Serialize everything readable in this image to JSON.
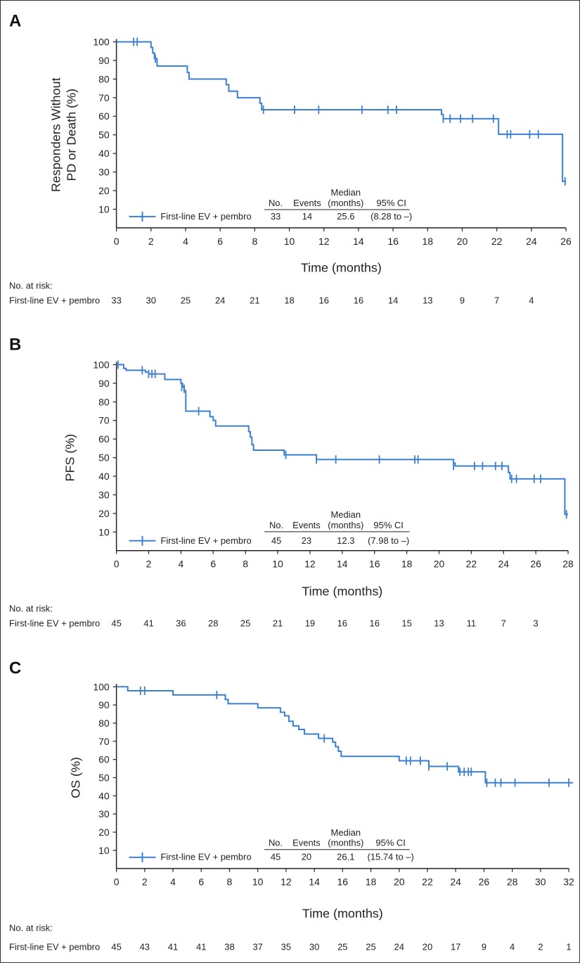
{
  "colors": {
    "curve": "#3b7fd0",
    "axis": "#222222",
    "text": "#222222"
  },
  "risk_header": "No. at risk:",
  "legend_header": {
    "no": "No.",
    "events": "Events",
    "median_l1": "Median",
    "median_l2": "(months)",
    "ci": "95% CI"
  },
  "chart_data": [
    {
      "type": "line",
      "panel": "A",
      "xlabel": "Time (months)",
      "ylabel_lines": [
        "Responders Without",
        "PD or Death (%)"
      ],
      "xlim": [
        0,
        26
      ],
      "ylim": [
        0,
        100
      ],
      "xticks": [
        0,
        2,
        4,
        6,
        8,
        10,
        12,
        14,
        16,
        18,
        20,
        22,
        24,
        26
      ],
      "yticks": [
        10,
        20,
        30,
        40,
        50,
        60,
        70,
        80,
        90,
        100
      ],
      "series": [
        {
          "name": "First-line EV + pembro",
          "no": "33",
          "events": "14",
          "median": "25.6",
          "ci": "(8.28 to –)",
          "steps": [
            [
              0,
              100
            ],
            [
              1.9,
              100
            ],
            [
              2.0,
              97
            ],
            [
              2.1,
              94
            ],
            [
              2.2,
              91
            ],
            [
              2.35,
              87
            ],
            [
              4.0,
              87
            ],
            [
              4.1,
              83.5
            ],
            [
              4.2,
              80
            ],
            [
              6.2,
              80
            ],
            [
              6.35,
              77
            ],
            [
              6.5,
              73.5
            ],
            [
              7.0,
              70
            ],
            [
              8.2,
              70
            ],
            [
              8.3,
              67
            ],
            [
              8.4,
              63.5
            ],
            [
              18.7,
              63.5
            ],
            [
              18.8,
              61
            ],
            [
              18.9,
              58.7
            ],
            [
              22.0,
              58.7
            ],
            [
              22.1,
              50.3
            ],
            [
              25.7,
              50.3
            ],
            [
              25.8,
              25
            ]
          ],
          "end_x": 26,
          "censors": [
            [
              1.0,
              100
            ],
            [
              1.2,
              100
            ],
            [
              2.25,
              91
            ],
            [
              8.5,
              63.5
            ],
            [
              10.3,
              63.5
            ],
            [
              11.7,
              63.5
            ],
            [
              14.2,
              63.5
            ],
            [
              15.7,
              63.5
            ],
            [
              16.2,
              63.5
            ],
            [
              18.9,
              58.7
            ],
            [
              19.3,
              58.7
            ],
            [
              19.9,
              58.7
            ],
            [
              20.6,
              58.7
            ],
            [
              21.8,
              58.7
            ],
            [
              22.6,
              50.3
            ],
            [
              22.8,
              50.3
            ],
            [
              23.9,
              50.3
            ],
            [
              24.4,
              50.3
            ],
            [
              25.95,
              25
            ]
          ]
        }
      ],
      "at_risk": {
        "label": "First-line EV + pembro",
        "values": [
          "33",
          "30",
          "25",
          "24",
          "21",
          "18",
          "16",
          "16",
          "14",
          "13",
          "9",
          "7",
          "4"
        ]
      }
    },
    {
      "type": "line",
      "panel": "B",
      "xlabel": "Time (months)",
      "ylabel_lines": [
        "PFS (%)"
      ],
      "xlim": [
        0,
        28
      ],
      "ylim": [
        0,
        100
      ],
      "xticks": [
        0,
        2,
        4,
        6,
        8,
        10,
        12,
        14,
        16,
        18,
        20,
        22,
        24,
        26,
        28
      ],
      "yticks": [
        10,
        20,
        30,
        40,
        50,
        60,
        70,
        80,
        90,
        100
      ],
      "series": [
        {
          "name": "First-line EV + pembro",
          "no": "45",
          "events": "23",
          "median": "12.3",
          "ci": "(7.98 to –)",
          "steps": [
            [
              0,
              100
            ],
            [
              0.3,
              100
            ],
            [
              0.45,
              98
            ],
            [
              0.6,
              97
            ],
            [
              1.7,
              97
            ],
            [
              1.8,
              96
            ],
            [
              2.0,
              95
            ],
            [
              2.9,
              95
            ],
            [
              3.0,
              92
            ],
            [
              3.9,
              92
            ],
            [
              4.0,
              90
            ],
            [
              4.1,
              88
            ],
            [
              4.2,
              86
            ],
            [
              4.3,
              75
            ],
            [
              5.5,
              75
            ],
            [
              5.8,
              72
            ],
            [
              6.0,
              70
            ],
            [
              6.15,
              67
            ],
            [
              8.0,
              67
            ],
            [
              8.2,
              64
            ],
            [
              8.3,
              61
            ],
            [
              8.4,
              57
            ],
            [
              8.5,
              54
            ],
            [
              10.3,
              54
            ],
            [
              10.4,
              51.5
            ],
            [
              12.3,
              51.5
            ],
            [
              12.4,
              49
            ],
            [
              20.8,
              49
            ],
            [
              20.9,
              47
            ],
            [
              21.0,
              45.5
            ],
            [
              24.1,
              45.5
            ],
            [
              24.3,
              42
            ],
            [
              24.4,
              38.6
            ],
            [
              27.7,
              38.6
            ],
            [
              27.8,
              19.5
            ]
          ],
          "end_x": 28,
          "censors": [
            [
              0.1,
              100
            ],
            [
              1.6,
              97
            ],
            [
              2.0,
              95
            ],
            [
              2.2,
              95
            ],
            [
              2.4,
              95
            ],
            [
              4.05,
              88
            ],
            [
              4.2,
              87
            ],
            [
              5.1,
              75
            ],
            [
              10.5,
              51.5
            ],
            [
              12.4,
              49
            ],
            [
              13.6,
              49
            ],
            [
              16.3,
              49
            ],
            [
              18.5,
              49
            ],
            [
              18.7,
              49
            ],
            [
              20.9,
              45.5
            ],
            [
              22.2,
              45.5
            ],
            [
              22.7,
              45.5
            ],
            [
              23.5,
              45.5
            ],
            [
              23.9,
              45.5
            ],
            [
              24.5,
              38.6
            ],
            [
              24.8,
              38.6
            ],
            [
              25.9,
              38.6
            ],
            [
              26.3,
              38.6
            ],
            [
              27.9,
              19.5
            ]
          ]
        }
      ],
      "at_risk": {
        "label": "First-line EV + pembro",
        "values": [
          "45",
          "41",
          "36",
          "28",
          "25",
          "21",
          "19",
          "16",
          "16",
          "15",
          "13",
          "11",
          "7",
          "3"
        ]
      }
    },
    {
      "type": "line",
      "panel": "C",
      "xlabel": "Time (months)",
      "ylabel_lines": [
        "OS (%)"
      ],
      "xlim": [
        0,
        32
      ],
      "ylim": [
        0,
        100
      ],
      "xticks": [
        0,
        2,
        4,
        6,
        8,
        10,
        12,
        14,
        16,
        18,
        20,
        22,
        24,
        26,
        28,
        30,
        32
      ],
      "yticks": [
        10,
        20,
        30,
        40,
        50,
        60,
        70,
        80,
        90,
        100
      ],
      "series": [
        {
          "name": "First-line EV + pembro",
          "no": "45",
          "events": "20",
          "median": "26.1",
          "ci": "(15.74 to –)",
          "steps": [
            [
              0,
              100
            ],
            [
              0.7,
              100
            ],
            [
              0.8,
              97.8
            ],
            [
              3.9,
              97.8
            ],
            [
              4.0,
              95.5
            ],
            [
              7.5,
              95.5
            ],
            [
              7.7,
              93
            ],
            [
              7.9,
              90.7
            ],
            [
              9.9,
              90.7
            ],
            [
              10.0,
              88.4
            ],
            [
              11.4,
              88.4
            ],
            [
              11.6,
              86
            ],
            [
              11.9,
              84
            ],
            [
              12.2,
              81
            ],
            [
              12.5,
              78.5
            ],
            [
              12.9,
              76.5
            ],
            [
              13.3,
              74
            ],
            [
              14.2,
              74
            ],
            [
              14.3,
              71.6
            ],
            [
              15.1,
              71.6
            ],
            [
              15.3,
              69.5
            ],
            [
              15.5,
              67
            ],
            [
              15.7,
              64.5
            ],
            [
              15.9,
              61.7
            ],
            [
              19.9,
              61.7
            ],
            [
              20.0,
              59.3
            ],
            [
              22.0,
              59.3
            ],
            [
              22.1,
              56.2
            ],
            [
              24.0,
              56.2
            ],
            [
              24.2,
              53.2
            ],
            [
              26.0,
              53.2
            ],
            [
              26.1,
              47.2
            ],
            [
              32.3,
              47.2
            ]
          ],
          "end_x": 32.3,
          "censors": [
            [
              1.7,
              97.8
            ],
            [
              2.0,
              97.8
            ],
            [
              7.1,
              95.5
            ],
            [
              14.7,
              71.6
            ],
            [
              20.5,
              59.3
            ],
            [
              20.8,
              59.3
            ],
            [
              21.5,
              59.3
            ],
            [
              22.1,
              56.2
            ],
            [
              23.4,
              56.2
            ],
            [
              24.3,
              53.2
            ],
            [
              24.6,
              53.2
            ],
            [
              24.9,
              53.2
            ],
            [
              25.1,
              53.2
            ],
            [
              26.2,
              47.2
            ],
            [
              26.8,
              47.2
            ],
            [
              27.2,
              47.2
            ],
            [
              28.2,
              47.2
            ],
            [
              30.6,
              47.2
            ],
            [
              32.0,
              47.2
            ]
          ]
        }
      ],
      "at_risk": {
        "label": "First-line EV + pembro",
        "values": [
          "45",
          "43",
          "41",
          "41",
          "38",
          "37",
          "35",
          "30",
          "25",
          "25",
          "24",
          "20",
          "17",
          "9",
          "4",
          "2",
          "1"
        ]
      }
    }
  ]
}
